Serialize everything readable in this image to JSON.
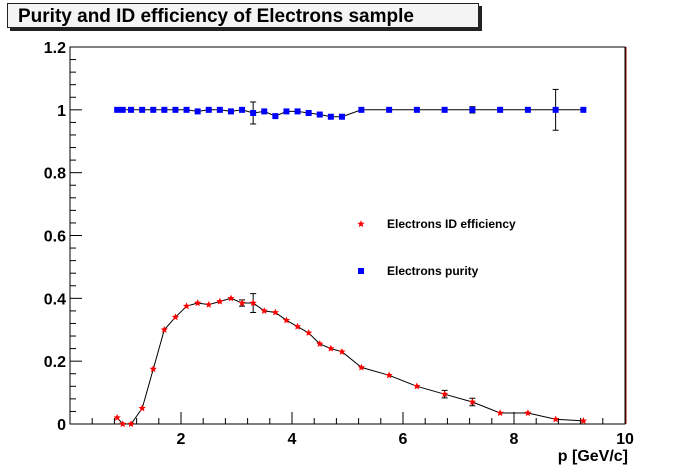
{
  "chart_data": {
    "type": "scatter",
    "title": "Purity and ID efficiency of Electrons sample",
    "xlabel": "p [GeV/c]",
    "ylabel": "",
    "xlim": [
      0,
      10
    ],
    "ylim": [
      0,
      1.2
    ],
    "xticks": [
      "2",
      "4",
      "6",
      "8",
      "10"
    ],
    "yticks": [
      "0",
      "0.2",
      "0.4",
      "0.6",
      "0.8",
      "1",
      "1.2"
    ],
    "legend_placement": "center-right",
    "grid": false,
    "series": [
      {
        "name": "Electrons ID efficiency",
        "color": "#ff0000",
        "marker": "star",
        "x": [
          0.85,
          0.95,
          1.1,
          1.3,
          1.5,
          1.7,
          1.9,
          2.1,
          2.3,
          2.5,
          2.7,
          2.9,
          3.1,
          3.3,
          3.5,
          3.7,
          3.9,
          4.1,
          4.3,
          4.5,
          4.7,
          4.9,
          5.25,
          5.75,
          6.25,
          6.75,
          7.25,
          7.75,
          8.25,
          8.75,
          9.25
        ],
        "y": [
          0.02,
          0.0,
          0.0,
          0.05,
          0.175,
          0.3,
          0.34,
          0.375,
          0.385,
          0.38,
          0.39,
          0.4,
          0.385,
          0.385,
          0.36,
          0.355,
          0.33,
          0.31,
          0.29,
          0.255,
          0.24,
          0.23,
          0.18,
          0.155,
          0.12,
          0.095,
          0.07,
          0.035,
          0.035,
          0.015,
          0.01
        ],
        "yerr": [
          0.003,
          0.003,
          0.003,
          0.005,
          0.005,
          0.005,
          0.005,
          0.005,
          0.005,
          0.005,
          0.005,
          0.005,
          0.01,
          0.03,
          0.005,
          0.005,
          0.005,
          0.005,
          0.005,
          0.005,
          0.005,
          0.005,
          0.005,
          0.005,
          0.005,
          0.012,
          0.012,
          0.005,
          0.005,
          0.005,
          0.005
        ]
      },
      {
        "name": "Electrons purity",
        "color": "#0000ff",
        "marker": "square",
        "x": [
          0.85,
          0.95,
          1.1,
          1.3,
          1.5,
          1.7,
          1.9,
          2.1,
          2.3,
          2.5,
          2.7,
          2.9,
          3.1,
          3.3,
          3.5,
          3.7,
          3.9,
          4.1,
          4.3,
          4.5,
          4.7,
          4.9,
          5.25,
          5.75,
          6.25,
          6.75,
          7.25,
          7.75,
          8.25,
          8.75,
          9.25
        ],
        "y": [
          1.0,
          1.0,
          1.0,
          1.0,
          1.0,
          1.0,
          1.0,
          1.0,
          0.995,
          1.0,
          1.0,
          0.995,
          1.0,
          0.99,
          0.995,
          0.98,
          0.995,
          0.995,
          0.99,
          0.985,
          0.978,
          0.978,
          1.0,
          1.0,
          1.0,
          1.0,
          1.0,
          1.0,
          1.0,
          1.0,
          1.0
        ],
        "yerr": [
          0.003,
          0.003,
          0.003,
          0.003,
          0.003,
          0.003,
          0.003,
          0.003,
          0.005,
          0.003,
          0.003,
          0.005,
          0.005,
          0.035,
          0.005,
          0.005,
          0.005,
          0.005,
          0.005,
          0.005,
          0.005,
          0.005,
          0.003,
          0.003,
          0.003,
          0.003,
          0.01,
          0.003,
          0.003,
          0.065,
          0.003
        ]
      }
    ]
  }
}
